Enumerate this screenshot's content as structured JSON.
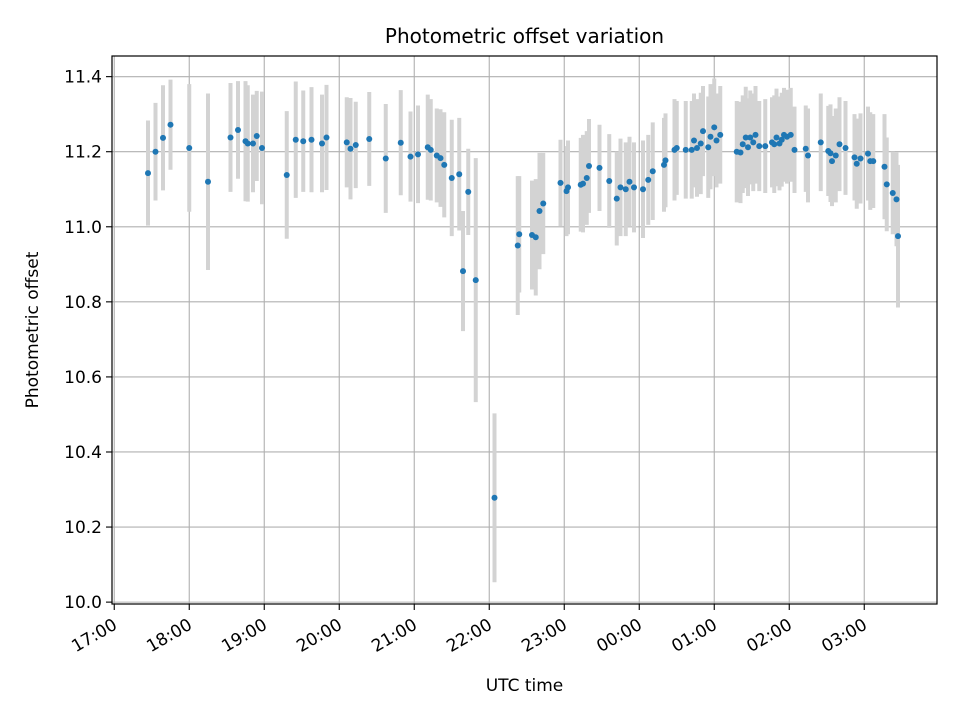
{
  "chart_data": {
    "type": "scatter",
    "title": "Photometric offset variation",
    "xlabel": "UTC time",
    "ylabel": "Photometric offset",
    "x_unit": "hours since 17:00 UTC",
    "xlim": [
      -0.03,
      10.97
    ],
    "ylim": [
      9.995,
      11.455
    ],
    "grid": true,
    "x_ticks": [
      {
        "value": 0,
        "label": "17:00"
      },
      {
        "value": 1,
        "label": "18:00"
      },
      {
        "value": 2,
        "label": "19:00"
      },
      {
        "value": 3,
        "label": "20:00"
      },
      {
        "value": 4,
        "label": "21:00"
      },
      {
        "value": 5,
        "label": "22:00"
      },
      {
        "value": 6,
        "label": "23:00"
      },
      {
        "value": 7,
        "label": "00:00"
      },
      {
        "value": 8,
        "label": "01:00"
      },
      {
        "value": 9,
        "label": "02:00"
      },
      {
        "value": 10,
        "label": "03:00"
      }
    ],
    "y_ticks": [
      {
        "value": 10.0,
        "label": "10.0"
      },
      {
        "value": 10.2,
        "label": "10.2"
      },
      {
        "value": 10.4,
        "label": "10.4"
      },
      {
        "value": 10.6,
        "label": "10.6"
      },
      {
        "value": 10.8,
        "label": "10.8"
      },
      {
        "value": 11.0,
        "label": "11.0"
      },
      {
        "value": 11.2,
        "label": "11.2"
      },
      {
        "value": 11.4,
        "label": "11.4"
      }
    ],
    "colors": {
      "point": "#1f77b4",
      "errorbar": "#d3d3d3",
      "grid": "#b0b0b0"
    },
    "series": [
      {
        "name": "Photometric offset",
        "points": [
          [
            0.45,
            11.143,
            0.14
          ],
          [
            0.55,
            11.2,
            0.13
          ],
          [
            0.65,
            11.237,
            0.14
          ],
          [
            0.75,
            11.272,
            0.12
          ],
          [
            1.0,
            11.21,
            0.17
          ],
          [
            1.25,
            11.12,
            0.235
          ],
          [
            1.55,
            11.238,
            0.145
          ],
          [
            1.65,
            11.258,
            0.13
          ],
          [
            1.75,
            11.228,
            0.16
          ],
          [
            1.78,
            11.222,
            0.155
          ],
          [
            1.85,
            11.222,
            0.13
          ],
          [
            1.9,
            11.242,
            0.12
          ],
          [
            1.97,
            11.21,
            0.15
          ],
          [
            2.3,
            11.138,
            0.17
          ],
          [
            2.42,
            11.232,
            0.155
          ],
          [
            2.52,
            11.228,
            0.135
          ],
          [
            2.63,
            11.232,
            0.14
          ],
          [
            2.77,
            11.222,
            0.13
          ],
          [
            2.83,
            11.238,
            0.14
          ],
          [
            3.1,
            11.225,
            0.12
          ],
          [
            3.15,
            11.208,
            0.135
          ],
          [
            3.22,
            11.218,
            0.115
          ],
          [
            3.4,
            11.234,
            0.125
          ],
          [
            3.62,
            11.182,
            0.145
          ],
          [
            3.82,
            11.224,
            0.14
          ],
          [
            3.95,
            11.187,
            0.12
          ],
          [
            4.05,
            11.193,
            0.13
          ],
          [
            4.18,
            11.212,
            0.14
          ],
          [
            4.22,
            11.205,
            0.135
          ],
          [
            4.3,
            11.19,
            0.125
          ],
          [
            4.35,
            11.183,
            0.13
          ],
          [
            4.4,
            11.165,
            0.14
          ],
          [
            4.5,
            11.13,
            0.155
          ],
          [
            4.6,
            11.14,
            0.15
          ],
          [
            4.65,
            10.882,
            0.16
          ],
          [
            4.72,
            11.093,
            0.115
          ],
          [
            4.82,
            10.858,
            0.325
          ],
          [
            5.07,
            10.278,
            0.225
          ],
          [
            5.38,
            10.95,
            0.185
          ],
          [
            5.4,
            10.98,
            0.155
          ],
          [
            5.57,
            10.978,
            0.145
          ],
          [
            5.62,
            10.972,
            0.155
          ],
          [
            5.67,
            11.042,
            0.155
          ],
          [
            5.72,
            11.062,
            0.135
          ],
          [
            5.95,
            11.117,
            0.115
          ],
          [
            6.03,
            11.095,
            0.12
          ],
          [
            6.05,
            11.105,
            0.125
          ],
          [
            6.22,
            11.112,
            0.125
          ],
          [
            6.25,
            11.115,
            0.13
          ],
          [
            6.3,
            11.13,
            0.125
          ],
          [
            6.33,
            11.162,
            0.125
          ],
          [
            6.47,
            11.157,
            0.115
          ],
          [
            6.6,
            11.122,
            0.125
          ],
          [
            6.7,
            11.075,
            0.125
          ],
          [
            6.75,
            11.105,
            0.13
          ],
          [
            6.82,
            11.1,
            0.125
          ],
          [
            6.87,
            11.12,
            0.12
          ],
          [
            6.93,
            11.105,
            0.12
          ],
          [
            7.05,
            11.1,
            0.13
          ],
          [
            7.12,
            11.125,
            0.12
          ],
          [
            7.18,
            11.148,
            0.13
          ],
          [
            7.33,
            11.165,
            0.125
          ],
          [
            7.35,
            11.177,
            0.125
          ],
          [
            7.47,
            11.205,
            0.135
          ],
          [
            7.5,
            11.21,
            0.125
          ],
          [
            7.62,
            11.205,
            0.13
          ],
          [
            7.7,
            11.205,
            0.13
          ],
          [
            7.73,
            11.23,
            0.125
          ],
          [
            7.77,
            11.21,
            0.13
          ],
          [
            7.82,
            11.222,
            0.135
          ],
          [
            7.85,
            11.255,
            0.12
          ],
          [
            7.92,
            11.212,
            0.135
          ],
          [
            7.95,
            11.24,
            0.14
          ],
          [
            8.0,
            11.265,
            0.13
          ],
          [
            8.03,
            11.23,
            0.125
          ],
          [
            8.08,
            11.245,
            0.13
          ],
          [
            8.3,
            11.2,
            0.135
          ],
          [
            8.35,
            11.198,
            0.135
          ],
          [
            8.38,
            11.22,
            0.13
          ],
          [
            8.42,
            11.238,
            0.135
          ],
          [
            8.45,
            11.212,
            0.13
          ],
          [
            8.48,
            11.238,
            0.125
          ],
          [
            8.52,
            11.225,
            0.13
          ],
          [
            8.55,
            11.245,
            0.13
          ],
          [
            8.6,
            11.215,
            0.12
          ],
          [
            8.68,
            11.215,
            0.125
          ],
          [
            8.77,
            11.225,
            0.12
          ],
          [
            8.8,
            11.22,
            0.13
          ],
          [
            8.83,
            11.238,
            0.13
          ],
          [
            8.87,
            11.222,
            0.125
          ],
          [
            8.9,
            11.232,
            0.125
          ],
          [
            8.93,
            11.245,
            0.125
          ],
          [
            8.97,
            11.24,
            0.125
          ],
          [
            9.02,
            11.245,
            0.125
          ],
          [
            9.07,
            11.205,
            0.115
          ],
          [
            9.22,
            11.208,
            0.115
          ],
          [
            9.25,
            11.19,
            0.125
          ],
          [
            9.42,
            11.225,
            0.13
          ],
          [
            9.52,
            11.202,
            0.12
          ],
          [
            9.55,
            11.196,
            0.13
          ],
          [
            9.57,
            11.175,
            0.12
          ],
          [
            9.62,
            11.19,
            0.125
          ],
          [
            9.67,
            11.22,
            0.125
          ],
          [
            9.75,
            11.21,
            0.125
          ],
          [
            9.87,
            11.185,
            0.115
          ],
          [
            9.9,
            11.168,
            0.12
          ],
          [
            9.95,
            11.182,
            0.12
          ],
          [
            10.05,
            11.195,
            0.125
          ],
          [
            10.08,
            11.175,
            0.13
          ],
          [
            10.12,
            11.175,
            0.125
          ],
          [
            10.27,
            11.16,
            0.14
          ],
          [
            10.3,
            11.113,
            0.125
          ],
          [
            10.38,
            11.09,
            0.11
          ],
          [
            10.43,
            11.073,
            0.125
          ],
          [
            10.45,
            10.975,
            0.19
          ]
        ]
      }
    ]
  }
}
